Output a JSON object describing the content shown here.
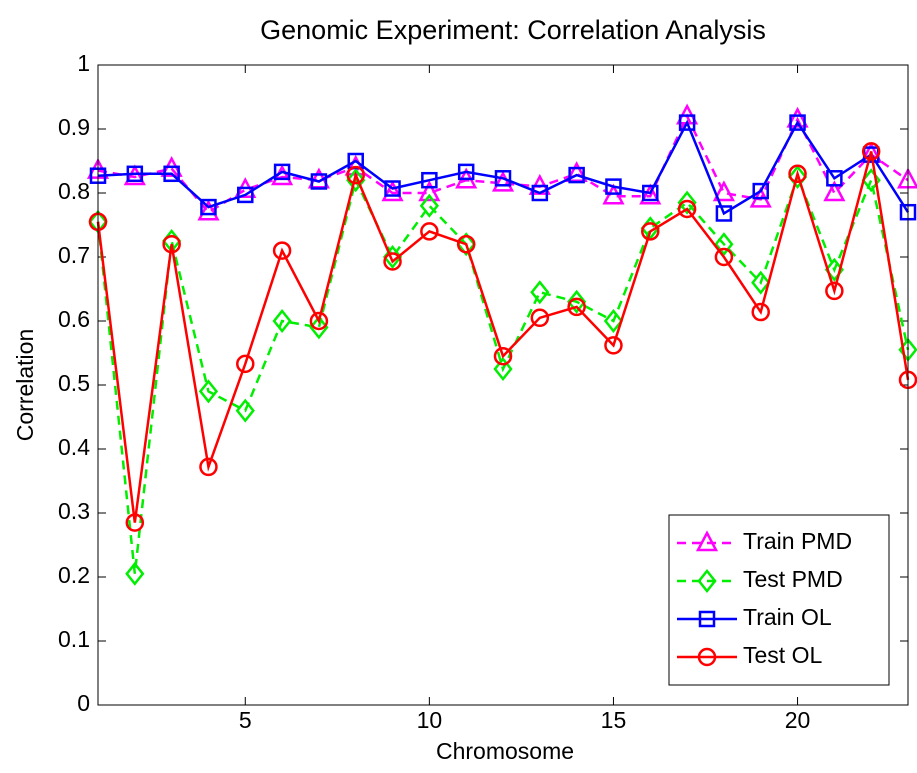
{
  "chart_data": {
    "type": "line",
    "title": "Genomic Experiment: Correlation Analysis",
    "x_label": "Chromosome",
    "y_label": "Correlation",
    "x": [
      1,
      2,
      3,
      4,
      5,
      6,
      7,
      8,
      9,
      10,
      11,
      12,
      13,
      14,
      15,
      16,
      17,
      18,
      19,
      20,
      21,
      22,
      23
    ],
    "xlim": [
      1,
      23
    ],
    "xticks": [
      5,
      10,
      15,
      20
    ],
    "ylim": [
      0,
      1
    ],
    "yticks": [
      0,
      0.1,
      0.2,
      0.3,
      0.4,
      0.5,
      0.6,
      0.7,
      0.8,
      0.9,
      1
    ],
    "grid": false,
    "legend": "lower right",
    "series": [
      {
        "name": "Train PMD",
        "color": "#ff00ff",
        "dashed": true,
        "marker": "triangle",
        "values": [
          0.835,
          0.825,
          0.838,
          0.77,
          0.805,
          0.825,
          0.82,
          0.84,
          0.8,
          0.8,
          0.82,
          0.815,
          0.81,
          0.83,
          0.795,
          0.795,
          0.92,
          0.8,
          0.79,
          0.915,
          0.8,
          0.86,
          0.82
        ]
      },
      {
        "name": "Test PMD",
        "color": "#00ee00",
        "dashed": true,
        "marker": "diamond",
        "values": [
          0.755,
          0.205,
          0.725,
          0.49,
          0.46,
          0.6,
          0.59,
          0.82,
          0.7,
          0.78,
          0.72,
          0.525,
          0.645,
          0.63,
          0.6,
          0.745,
          0.785,
          0.72,
          0.66,
          0.825,
          0.68,
          0.82,
          0.555
        ]
      },
      {
        "name": "Train OL",
        "color": "#0000ff",
        "dashed": false,
        "marker": "square",
        "values": [
          0.827,
          0.83,
          0.83,
          0.778,
          0.797,
          0.833,
          0.818,
          0.85,
          0.807,
          0.82,
          0.833,
          0.823,
          0.8,
          0.828,
          0.81,
          0.8,
          0.91,
          0.768,
          0.803,
          0.91,
          0.823,
          0.86,
          0.77
        ]
      },
      {
        "name": "Test OL",
        "color": "#ff0000",
        "dashed": false,
        "marker": "circle",
        "values": [
          0.755,
          0.285,
          0.72,
          0.372,
          0.533,
          0.71,
          0.6,
          0.828,
          0.693,
          0.74,
          0.72,
          0.545,
          0.605,
          0.622,
          0.562,
          0.74,
          0.775,
          0.7,
          0.614,
          0.83,
          0.647,
          0.865,
          0.508
        ]
      }
    ]
  }
}
